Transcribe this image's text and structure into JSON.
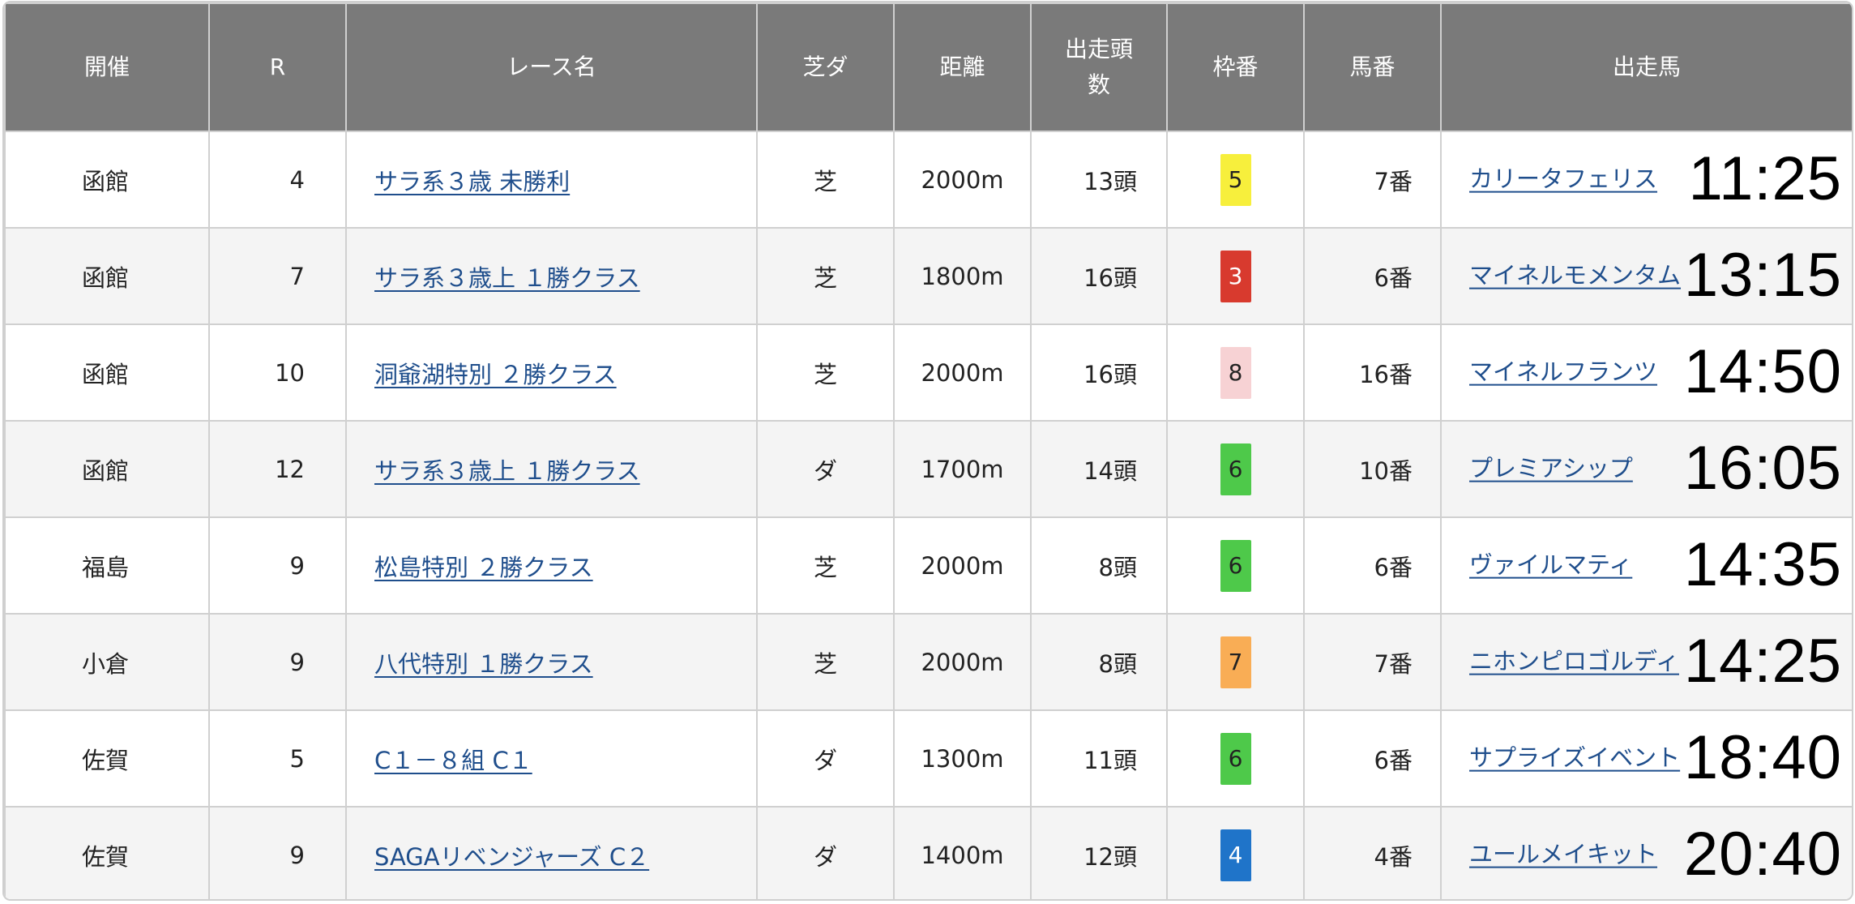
{
  "table": {
    "headers": {
      "venue": "開催",
      "race_no": "R",
      "race_name": "レース名",
      "surface": "芝ダ",
      "distance": "距離",
      "runners": "出走頭数",
      "gate": "枠番",
      "horse_no": "馬番",
      "horse": "出走馬"
    },
    "rows": [
      {
        "venue": "函館",
        "race_no": "4",
        "race_name": "サラ系３歳 未勝利",
        "surface": "芝",
        "distance": "2000m",
        "runners": "13頭",
        "gate": "5",
        "gate_bg": "#f7ef3c",
        "gate_fg": "#222222",
        "horse_no": "7番",
        "horse": "カリータフェリス",
        "time": "11:25"
      },
      {
        "venue": "函館",
        "race_no": "7",
        "race_name": "サラ系３歳上 １勝クラス",
        "surface": "芝",
        "distance": "1800m",
        "runners": "16頭",
        "gate": "3",
        "gate_bg": "#d83a2e",
        "gate_fg": "#ffffff",
        "horse_no": "6番",
        "horse": "マイネルモメンタム",
        "time": "13:15"
      },
      {
        "venue": "函館",
        "race_no": "10",
        "race_name": "洞爺湖特別 ２勝クラス",
        "surface": "芝",
        "distance": "2000m",
        "runners": "16頭",
        "gate": "8",
        "gate_bg": "#f7d2d4",
        "gate_fg": "#222222",
        "horse_no": "16番",
        "horse": "マイネルフランツ",
        "time": "14:50"
      },
      {
        "venue": "函館",
        "race_no": "12",
        "race_name": "サラ系３歳上 １勝クラス",
        "surface": "ダ",
        "distance": "1700m",
        "runners": "14頭",
        "gate": "6",
        "gate_bg": "#4ec94a",
        "gate_fg": "#222222",
        "horse_no": "10番",
        "horse": "プレミアシップ",
        "time": "16:05"
      },
      {
        "venue": "福島",
        "race_no": "9",
        "race_name": "松島特別 ２勝クラス",
        "surface": "芝",
        "distance": "2000m",
        "runners": "8頭",
        "gate": "6",
        "gate_bg": "#4ec94a",
        "gate_fg": "#222222",
        "horse_no": "6番",
        "horse": "ヴァイルマティ",
        "time": "14:35"
      },
      {
        "venue": "小倉",
        "race_no": "9",
        "race_name": "八代特別 １勝クラス",
        "surface": "芝",
        "distance": "2000m",
        "runners": "8頭",
        "gate": "7",
        "gate_bg": "#f9ad55",
        "gate_fg": "#222222",
        "horse_no": "7番",
        "horse": "ニホンピロゴルディ",
        "time": "14:25"
      },
      {
        "venue": "佐賀",
        "race_no": "5",
        "race_name": "C１－８組 C１",
        "surface": "ダ",
        "distance": "1300m",
        "runners": "11頭",
        "gate": "6",
        "gate_bg": "#4ec94a",
        "gate_fg": "#222222",
        "horse_no": "6番",
        "horse": "サプライズイベント",
        "time": "18:40"
      },
      {
        "venue": "佐賀",
        "race_no": "9",
        "race_name": "SAGAリベンジャーズ C２",
        "surface": "ダ",
        "distance": "1400m",
        "runners": "12頭",
        "gate": "4",
        "gate_bg": "#1f74c9",
        "gate_fg": "#ffffff",
        "horse_no": "4番",
        "horse": "ユールメイキット",
        "time": "20:40"
      }
    ]
  }
}
